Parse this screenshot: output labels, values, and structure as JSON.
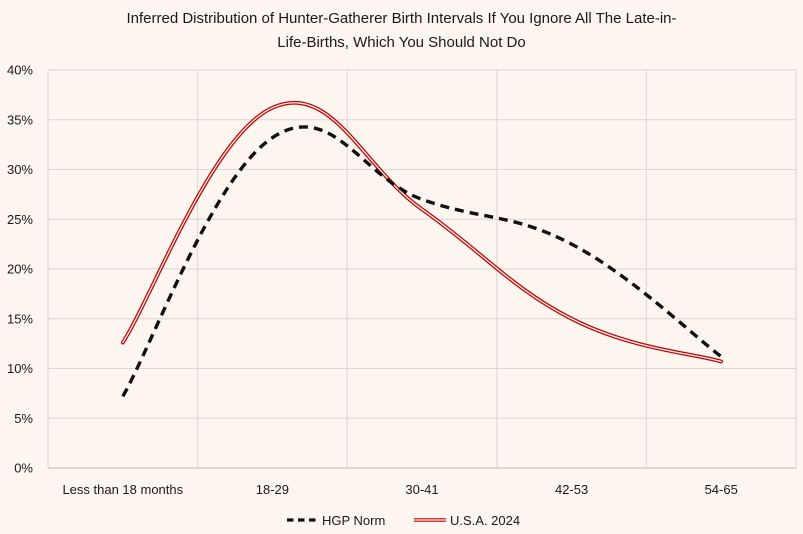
{
  "chart_data": {
    "type": "line",
    "title_lines": [
      "Inferred Distribution of Hunter-Gatherer Birth Intervals If You Ignore All The Late-in-",
      "Life-Births, Which You Should Not Do"
    ],
    "categories": [
      "Less than 18 months",
      "18-29",
      "30-41",
      "42-53",
      "54-65"
    ],
    "y_ticks": [
      "0%",
      "5%",
      "10%",
      "15%",
      "20%",
      "25%",
      "30%",
      "35%",
      "40%"
    ],
    "ylim": [
      0,
      40
    ],
    "grid": true,
    "legend_position": "bottom",
    "series": [
      {
        "name": "HGP Norm",
        "style": "dashed",
        "color": "#111111",
        "values": [
          7.2,
          33.2,
          27.0,
          22.5,
          11.2
        ]
      },
      {
        "name": "U.S.A. 2024",
        "style": "double",
        "color": "#c00000",
        "values": [
          12.6,
          36.2,
          26.0,
          15.0,
          10.7
        ]
      }
    ]
  }
}
